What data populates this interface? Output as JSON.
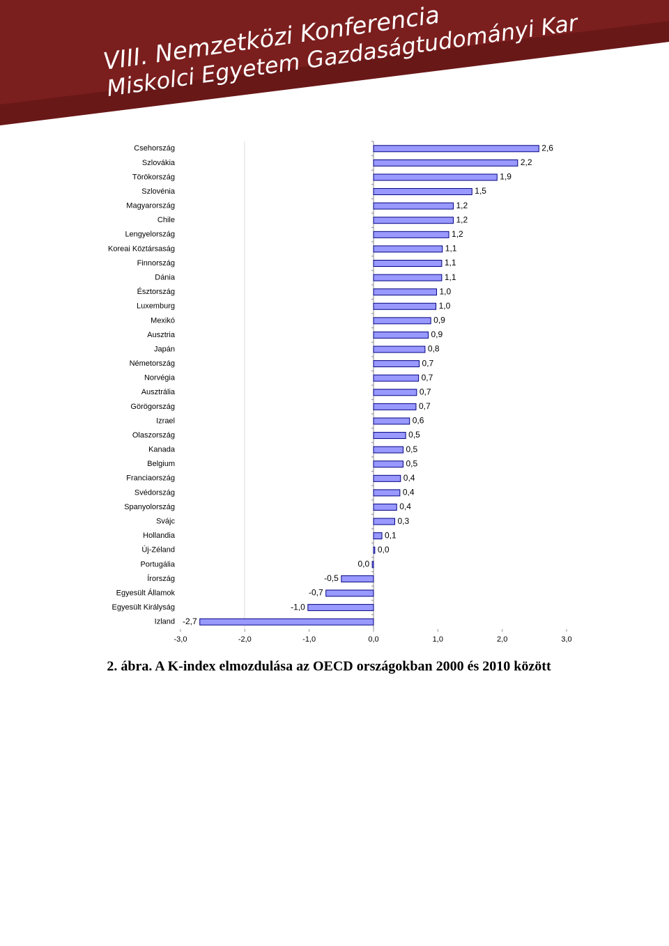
{
  "header": {
    "line1": "VIII. Nemzetközi Konferencia",
    "line2": "Miskolci Egyetem Gazdaságtudományi Kar"
  },
  "chart_data": {
    "type": "hbar",
    "categories": [
      "Csehország",
      "Szlovákia",
      "Törökország",
      "Szlovénia",
      "Magyarország",
      "Chile",
      "Lengyelország",
      "Koreai Köztársaság",
      "Finnország",
      "Dánia",
      "Észtország",
      "Luxemburg",
      "Mexikó",
      "Ausztria",
      "Japán",
      "Németország",
      "Norvégia",
      "Ausztrália",
      "Görögország",
      "Izrael",
      "Olaszország",
      "Kanada",
      "Belgium",
      "Franciaország",
      "Svédország",
      "Spanyolország",
      "Svájc",
      "Hollandia",
      "Új-Zéland",
      "Portugália",
      "Írország",
      "Egyesült Államok",
      "Egyesült Királyság",
      "Izland"
    ],
    "values": [
      2.57,
      2.24,
      1.92,
      1.53,
      1.24,
      1.24,
      1.17,
      1.07,
      1.06,
      1.06,
      0.98,
      0.97,
      0.89,
      0.85,
      0.8,
      0.71,
      0.7,
      0.67,
      0.66,
      0.56,
      0.5,
      0.46,
      0.46,
      0.42,
      0.41,
      0.36,
      0.33,
      0.13,
      0.02,
      -0.02,
      -0.5,
      -0.74,
      -1.02,
      -2.7
    ],
    "value_labels": [
      "2,6",
      "2,2",
      "1,9",
      "1,5",
      "1,2",
      "1,2",
      "1,2",
      "1,1",
      "1,1",
      "1,1",
      "1,0",
      "1,0",
      "0,9",
      "0,9",
      "0,8",
      "0,7",
      "0,7",
      "0,7",
      "0,7",
      "0,6",
      "0,5",
      "0,5",
      "0,5",
      "0,4",
      "0,4",
      "0,4",
      "0,3",
      "0,1",
      "0,0",
      "0,0",
      "-0,5",
      "-0,7",
      "-1,0",
      "-2,7"
    ],
    "color": "#9999ff",
    "xlim": [
      -3,
      3
    ],
    "xticks": [
      {
        "value": -3,
        "label": "-3,0"
      },
      {
        "value": -2,
        "label": "-2,0"
      },
      {
        "value": -1,
        "label": "-1,0"
      },
      {
        "value": 0,
        "label": "0,0"
      },
      {
        "value": 1,
        "label": "1,0"
      },
      {
        "value": 2,
        "label": "2,0"
      },
      {
        "value": 3,
        "label": "3,0"
      }
    ]
  },
  "caption": "2. ábra. A K-index elmozdulása az OECD országokban 2000 és 2010 között"
}
